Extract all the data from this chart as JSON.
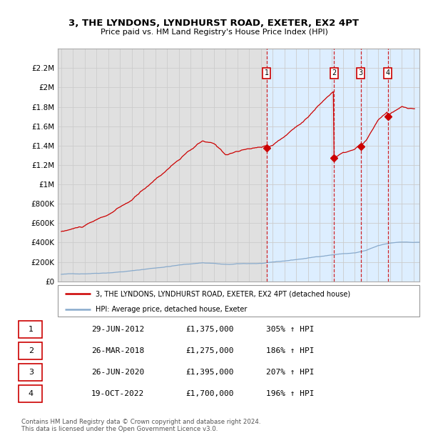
{
  "title": "3, THE LYNDONS, LYNDHURST ROAD, EXETER, EX2 4PT",
  "subtitle": "Price paid vs. HM Land Registry's House Price Index (HPI)",
  "background_color": "#ffffff",
  "plot_bg_color_left": "#e8e8e8",
  "plot_bg_color_right": "#ddeeff",
  "ylim": [
    0,
    2400000
  ],
  "xlim": [
    1994.7,
    2025.5
  ],
  "yticks": [
    0,
    200000,
    400000,
    600000,
    800000,
    1000000,
    1200000,
    1400000,
    1600000,
    1800000,
    2000000,
    2200000
  ],
  "ytick_labels": [
    "£0",
    "£200K",
    "£400K",
    "£600K",
    "£800K",
    "£1M",
    "£1.2M",
    "£1.4M",
    "£1.6M",
    "£1.8M",
    "£2M",
    "£2.2M"
  ],
  "xticks": [
    1995,
    1996,
    1997,
    1998,
    1999,
    2000,
    2001,
    2002,
    2003,
    2004,
    2005,
    2006,
    2007,
    2008,
    2009,
    2010,
    2011,
    2012,
    2013,
    2014,
    2015,
    2016,
    2017,
    2018,
    2019,
    2020,
    2021,
    2022,
    2023,
    2024,
    2025
  ],
  "red_line_color": "#cc0000",
  "blue_line_color": "#88aacc",
  "grid_color": "#cccccc",
  "sale_dates": [
    2012.49,
    2018.23,
    2020.49,
    2022.8
  ],
  "sale_prices": [
    1375000,
    1275000,
    1395000,
    1700000
  ],
  "sale_labels": [
    "1",
    "2",
    "3",
    "4"
  ],
  "legend_items": [
    "3, THE LYNDONS, LYNDHURST ROAD, EXETER, EX2 4PT (detached house)",
    "HPI: Average price, detached house, Exeter"
  ],
  "footer_text": "Contains HM Land Registry data © Crown copyright and database right 2024.\nThis data is licensed under the Open Government Licence v3.0.",
  "table_data": [
    [
      "1",
      "29-JUN-2012",
      "£1,375,000",
      "305% ↑ HPI"
    ],
    [
      "2",
      "26-MAR-2018",
      "£1,275,000",
      "186% ↑ HPI"
    ],
    [
      "3",
      "26-JUN-2020",
      "£1,395,000",
      "207% ↑ HPI"
    ],
    [
      "4",
      "19-OCT-2022",
      "£1,700,000",
      "196% ↑ HPI"
    ]
  ]
}
